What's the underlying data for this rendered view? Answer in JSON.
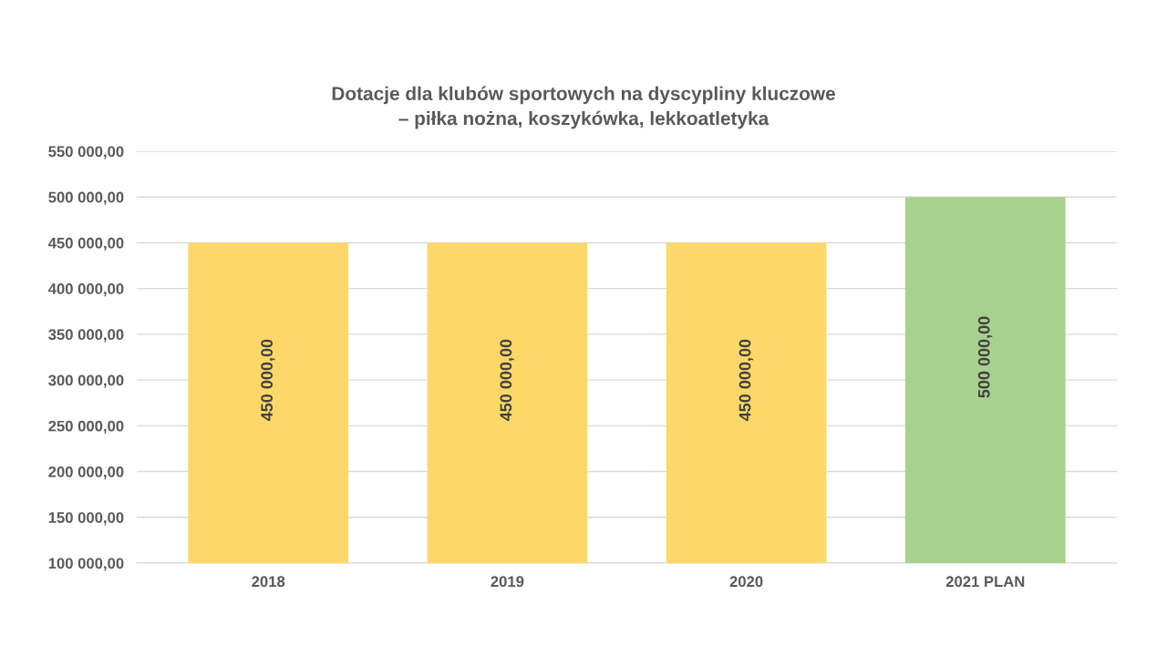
{
  "chart_data": {
    "type": "bar",
    "title": "Dotacje dla klubów sportowych na dyscypliny kluczowe\n– piłka nożna, koszykówka, lekkoatletyka",
    "categories": [
      "2018",
      "2019",
      "2020",
      "2021 PLAN"
    ],
    "values": [
      450000,
      450000,
      450000,
      500000
    ],
    "colors": [
      "#fdd868",
      "#fdd868",
      "#fdd868",
      "#a9d18e"
    ],
    "value_labels": [
      "450 000,00",
      "450 000,00",
      "450 000,00",
      "500 000,00"
    ],
    "ylim": [
      100000,
      550000
    ],
    "yticks": [
      {
        "value": 100000,
        "label": "100 000,00"
      },
      {
        "value": 150000,
        "label": "150 000,00"
      },
      {
        "value": 200000,
        "label": "200 000,00"
      },
      {
        "value": 250000,
        "label": "250 000,00"
      },
      {
        "value": 300000,
        "label": "300 000,00"
      },
      {
        "value": 350000,
        "label": "350 000,00"
      },
      {
        "value": 400000,
        "label": "400 000,00"
      },
      {
        "value": 450000,
        "label": "450 000,00"
      },
      {
        "value": 500000,
        "label": "500 000,00"
      },
      {
        "value": 550000,
        "label": "550 000,00"
      }
    ],
    "grid": "y"
  }
}
